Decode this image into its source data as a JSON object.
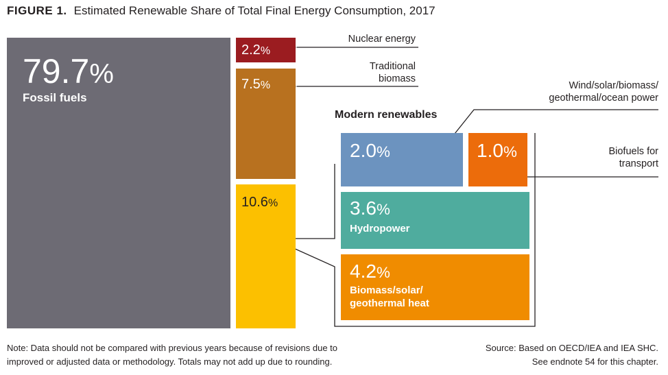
{
  "chart_data": {
    "type": "treemap",
    "figure_label": "FIGURE 1.",
    "title": "Estimated Renewable Share of Total Final Energy Consumption, 2017",
    "segments": [
      {
        "id": "fossil",
        "label": "Fossil fuels",
        "value": 79.7,
        "value_text": "79.7",
        "color": "#6d6b74"
      },
      {
        "id": "nuclear",
        "label": "Nuclear energy",
        "value": 2.2,
        "value_text": "2.2",
        "color": "#9b1c20"
      },
      {
        "id": "traditional",
        "label": "Traditional biomass",
        "label_lines": [
          "Traditional",
          "biomass"
        ],
        "value": 7.5,
        "value_text": "7.5",
        "color": "#b8711f"
      },
      {
        "id": "modern",
        "label": "Modern renewables",
        "value": 10.6,
        "value_text": "10.6",
        "color": "#fcc000"
      }
    ],
    "modern_breakdown_title": "Modern renewables",
    "modern_breakdown": [
      {
        "id": "wind",
        "label": "Wind/solar/biomass/ geothermal/ocean power",
        "label_lines": [
          "Wind/solar/biomass/",
          "geothermal/ocean power"
        ],
        "value": 2.0,
        "value_text": "2.0",
        "color": "#6c93bf"
      },
      {
        "id": "biofuels",
        "label": "Biofuels for transport",
        "label_lines": [
          "Biofuels for",
          "transport"
        ],
        "value": 1.0,
        "value_text": "1.0",
        "color": "#ec6c0b"
      },
      {
        "id": "hydro",
        "label": "Hydropower",
        "value": 3.6,
        "value_text": "3.6",
        "color": "#4fac9e"
      },
      {
        "id": "heat",
        "label": "Biomass/solar/ geothermal heat",
        "label_lines": [
          "Biomass/solar/",
          "geothermal heat"
        ],
        "value": 4.2,
        "value_text": "4.2",
        "color": "#f08c00"
      }
    ],
    "unit": "%"
  },
  "notes": {
    "note_lines": [
      "Note: Data should not be compared with previous years because of revisions due to",
      "improved or adjusted data or methodology. Totals may not add up due to rounding."
    ],
    "source_lines": [
      "Source: Based on OECD/IEA and IEA SHC.",
      "See endnote 54 for this chapter."
    ]
  }
}
